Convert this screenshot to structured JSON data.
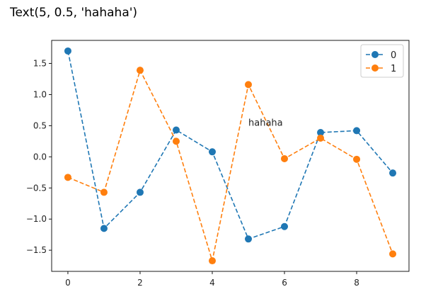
{
  "output_text": "Text(5, 0.5, 'hahaha')",
  "chart_data": {
    "type": "line",
    "x": [
      0,
      1,
      2,
      3,
      4,
      5,
      6,
      7,
      8,
      9
    ],
    "series": [
      {
        "name": "0",
        "color": "#1f77b4",
        "linestyle": "dashed",
        "marker": "circle",
        "values": [
          1.7,
          -1.15,
          -0.57,
          0.43,
          0.08,
          -1.32,
          -1.12,
          0.39,
          0.42,
          -0.26
        ]
      },
      {
        "name": "1",
        "color": "#ff7f0e",
        "linestyle": "dashed",
        "marker": "circle",
        "values": [
          -0.33,
          -0.57,
          1.39,
          0.25,
          -1.67,
          1.16,
          -0.03,
          0.3,
          -0.04,
          -1.56
        ]
      }
    ],
    "xticks": [
      0,
      2,
      4,
      6,
      8
    ],
    "yticks": [
      -1.5,
      -1.0,
      -0.5,
      0.0,
      0.5,
      1.0,
      1.5
    ],
    "ytick_labels": [
      "−1.5",
      "−1.0",
      "−0.5",
      "0.0",
      "0.5",
      "1.0",
      "1.5"
    ],
    "xlim": [
      -0.45,
      9.45
    ],
    "ylim": [
      -1.84,
      1.87
    ],
    "grid": false,
    "legend": "top-right",
    "annotation": {
      "x": 5,
      "y": 0.5,
      "text": "hahaha"
    }
  }
}
